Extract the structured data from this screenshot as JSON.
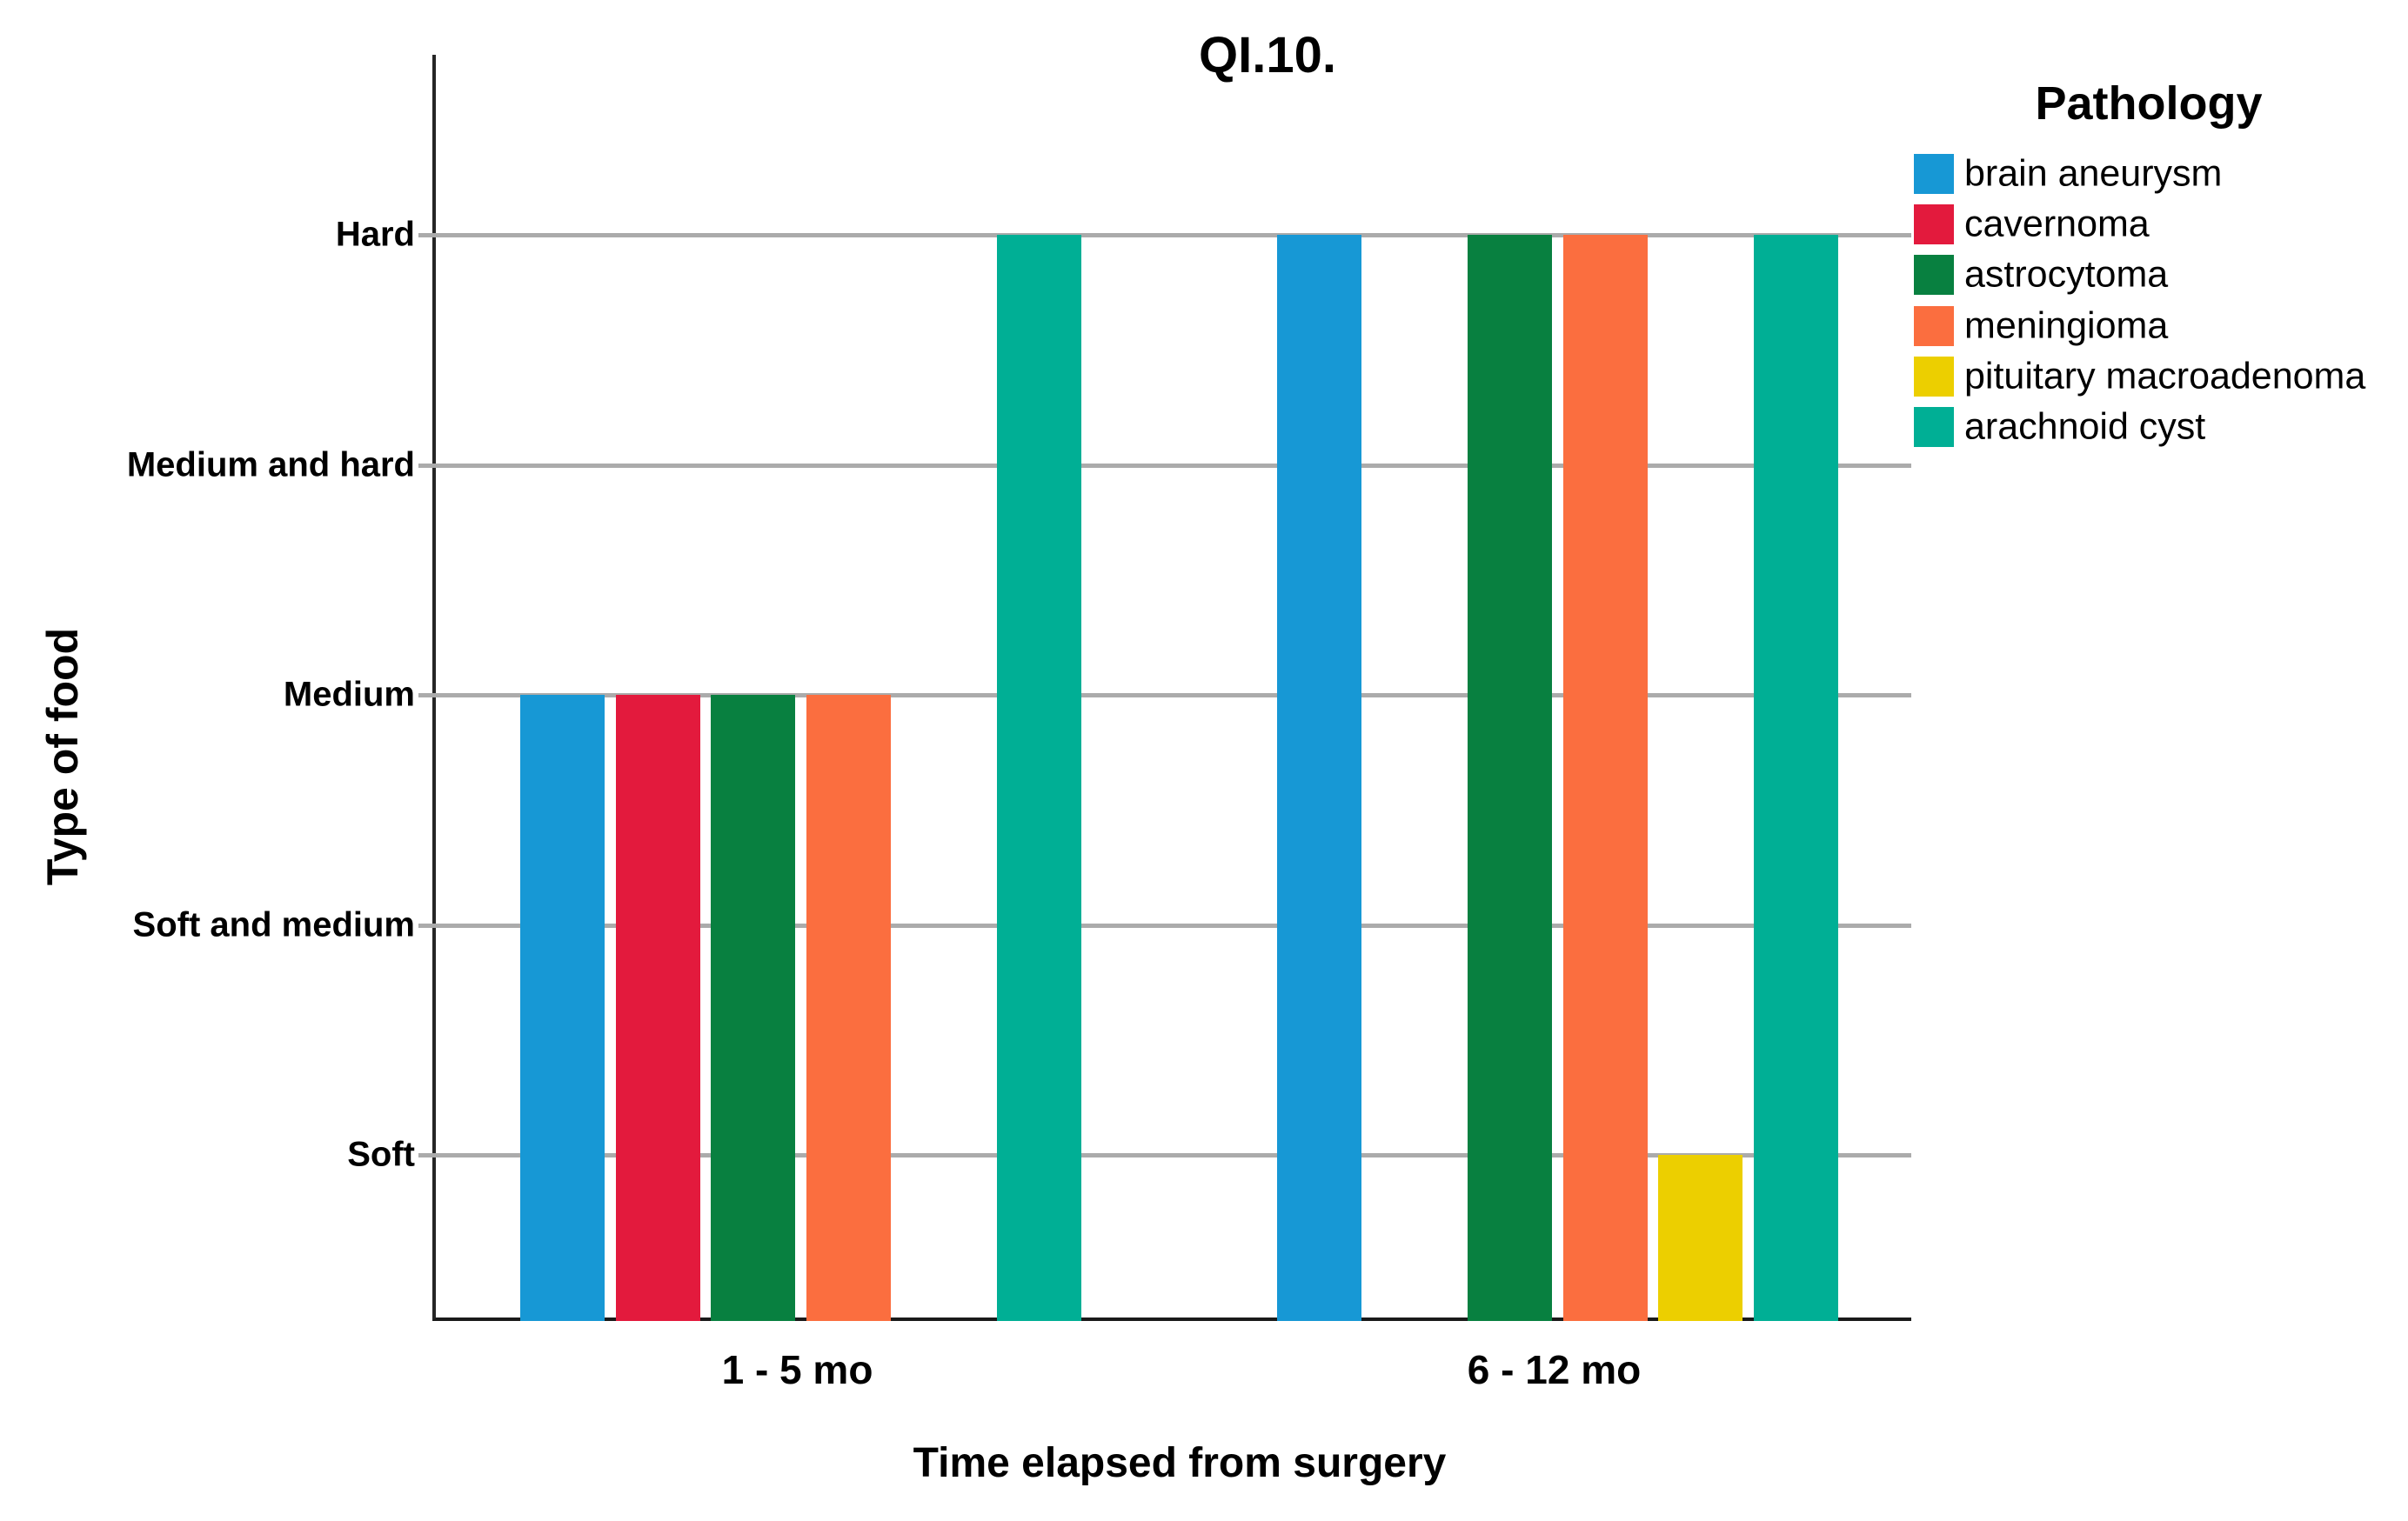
{
  "title": "QI.10.",
  "axes": {
    "y_title": "Type of food",
    "x_title": "Time elapsed from surgery",
    "y_categories": [
      "Hard",
      "Medium and hard",
      "Medium",
      "Soft and medium",
      "Soft"
    ],
    "x_categories": [
      "1 - 5 mo",
      "6 - 12 mo"
    ]
  },
  "legend": {
    "title": "Pathology"
  },
  "colors": {
    "gridline": "#ababab",
    "axis_line": "#262626"
  },
  "chart_data": {
    "type": "bar",
    "title": "QI.10.",
    "xlabel": "Time elapsed from surgery",
    "ylabel": "Type of food",
    "categories": [
      "1 - 5 mo",
      "6 - 12 mo"
    ],
    "y_axis_categories_top_to_bottom": [
      "Hard",
      "Medium and hard",
      "Medium",
      "Soft and medium",
      "Soft"
    ],
    "grid": true,
    "legend_position": "right",
    "series": [
      {
        "name": "brain aneurysm",
        "color": "#1798d5",
        "values": [
          "Medium",
          "Hard"
        ]
      },
      {
        "name": "cavernoma",
        "color": "#e31a3d",
        "values": [
          "Medium",
          null
        ]
      },
      {
        "name": "astrocytoma",
        "color": "#088040",
        "values": [
          "Medium",
          "Hard"
        ]
      },
      {
        "name": "meningioma",
        "color": "#fb6e3f",
        "values": [
          "Medium",
          "Hard"
        ]
      },
      {
        "name": "pituitary macroadenoma",
        "color": "#eccf00",
        "values": [
          null,
          "Soft"
        ]
      },
      {
        "name": "arachnoid cyst",
        "color": "#00af95",
        "values": [
          "Hard",
          "Hard"
        ]
      }
    ]
  }
}
